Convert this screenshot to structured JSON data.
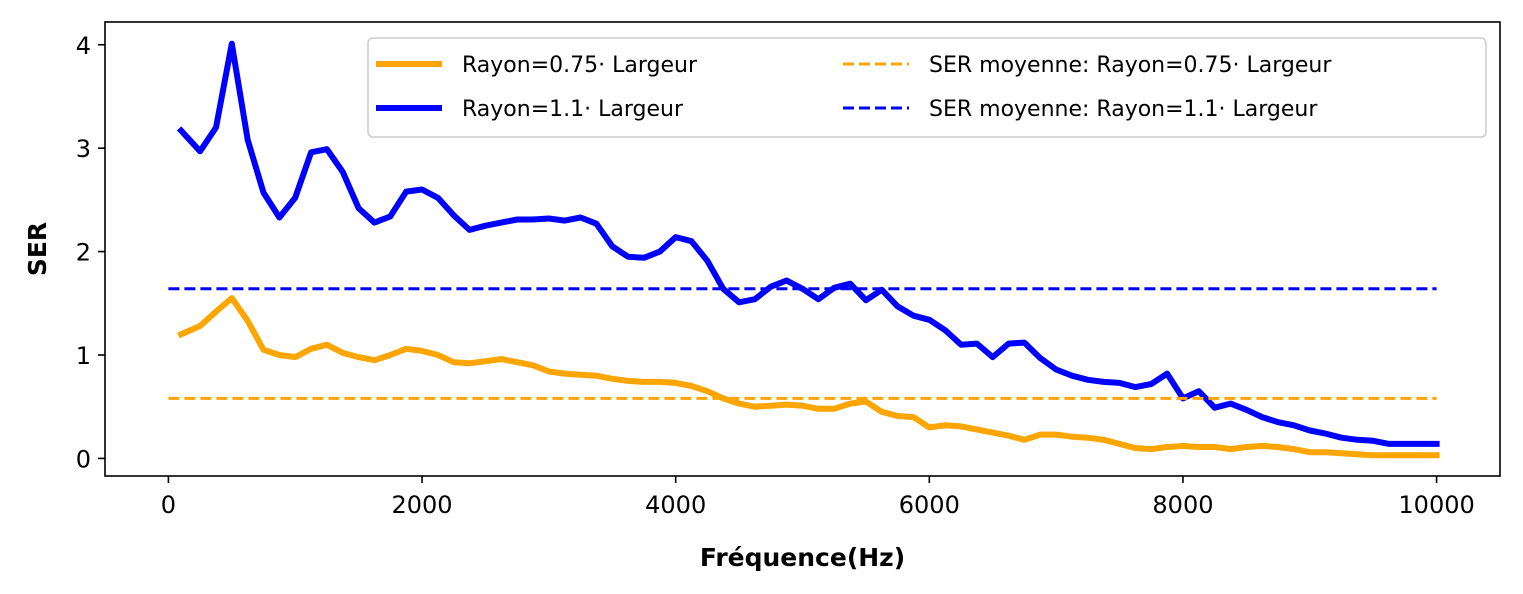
{
  "chart_data": {
    "type": "line",
    "xlabel": "Fréquence(Hz)",
    "ylabel": "SER",
    "xlim": [
      -500,
      10500
    ],
    "ylim": [
      -0.17,
      4.22
    ],
    "xticks": [
      0,
      2000,
      4000,
      6000,
      8000,
      10000
    ],
    "yticks": [
      0,
      1,
      2,
      3,
      4
    ],
    "grid": false,
    "legend_position": "top-right",
    "series": [
      {
        "name": "Rayon=0.75· Largeur",
        "color": "#FFA500",
        "style": "solid",
        "x": [
          100,
          250,
          375,
          500,
          625,
          750,
          875,
          1000,
          1125,
          1250,
          1375,
          1500,
          1625,
          1750,
          1875,
          2000,
          2125,
          2250,
          2375,
          2500,
          2625,
          2750,
          2875,
          3000,
          3125,
          3250,
          3375,
          3500,
          3625,
          3750,
          3875,
          4000,
          4125,
          4250,
          4375,
          4500,
          4625,
          4750,
          4875,
          5000,
          5125,
          5250,
          5375,
          5500,
          5625,
          5750,
          5875,
          6000,
          6125,
          6250,
          6375,
          6500,
          6625,
          6750,
          6875,
          7000,
          7125,
          7250,
          7375,
          7500,
          7625,
          7750,
          7875,
          8000,
          8125,
          8250,
          8375,
          8500,
          8625,
          8750,
          8875,
          9000,
          9125,
          9250,
          9375,
          9500,
          9625,
          9750,
          9875,
          10000
        ],
        "y": [
          1.2,
          1.28,
          1.42,
          1.55,
          1.33,
          1.05,
          1.0,
          0.98,
          1.06,
          1.1,
          1.02,
          0.98,
          0.95,
          1.0,
          1.06,
          1.04,
          1.0,
          0.93,
          0.92,
          0.94,
          0.96,
          0.93,
          0.9,
          0.84,
          0.82,
          0.81,
          0.8,
          0.77,
          0.75,
          0.74,
          0.74,
          0.73,
          0.7,
          0.65,
          0.58,
          0.53,
          0.5,
          0.51,
          0.52,
          0.51,
          0.48,
          0.48,
          0.53,
          0.55,
          0.45,
          0.41,
          0.4,
          0.3,
          0.32,
          0.31,
          0.28,
          0.25,
          0.22,
          0.18,
          0.23,
          0.23,
          0.21,
          0.2,
          0.18,
          0.14,
          0.1,
          0.09,
          0.11,
          0.12,
          0.11,
          0.11,
          0.09,
          0.11,
          0.12,
          0.11,
          0.09,
          0.06,
          0.06,
          0.05,
          0.04,
          0.03,
          0.03,
          0.03,
          0.03,
          0.03
        ]
      },
      {
        "name": "Rayon=1.1· Largeur",
        "color": "#0000FF",
        "style": "solid",
        "x": [
          100,
          250,
          375,
          500,
          625,
          750,
          875,
          1000,
          1125,
          1250,
          1375,
          1500,
          1625,
          1750,
          1875,
          2000,
          2125,
          2250,
          2375,
          2500,
          2625,
          2750,
          2875,
          3000,
          3125,
          3250,
          3375,
          3500,
          3625,
          3750,
          3875,
          4000,
          4125,
          4250,
          4375,
          4500,
          4625,
          4750,
          4875,
          5000,
          5125,
          5250,
          5375,
          5500,
          5625,
          5750,
          5875,
          6000,
          6125,
          6250,
          6375,
          6500,
          6625,
          6750,
          6875,
          7000,
          7125,
          7250,
          7375,
          7500,
          7625,
          7750,
          7875,
          8000,
          8125,
          8250,
          8375,
          8500,
          8625,
          8750,
          8875,
          9000,
          9125,
          9250,
          9375,
          9500,
          9625,
          9750,
          9875,
          10000
        ],
        "y": [
          3.17,
          2.97,
          3.2,
          4.01,
          3.08,
          2.57,
          2.33,
          2.52,
          2.96,
          2.99,
          2.77,
          2.42,
          2.28,
          2.34,
          2.58,
          2.6,
          2.52,
          2.35,
          2.21,
          2.25,
          2.28,
          2.31,
          2.31,
          2.32,
          2.3,
          2.33,
          2.27,
          2.05,
          1.95,
          1.94,
          2.0,
          2.14,
          2.1,
          1.91,
          1.64,
          1.51,
          1.54,
          1.66,
          1.72,
          1.64,
          1.54,
          1.65,
          1.69,
          1.53,
          1.63,
          1.47,
          1.38,
          1.34,
          1.24,
          1.1,
          1.11,
          0.98,
          1.11,
          1.12,
          0.97,
          0.86,
          0.8,
          0.76,
          0.74,
          0.73,
          0.69,
          0.72,
          0.82,
          0.58,
          0.65,
          0.49,
          0.53,
          0.47,
          0.4,
          0.35,
          0.32,
          0.27,
          0.24,
          0.2,
          0.18,
          0.17,
          0.14,
          0.14,
          0.14,
          0.14
        ]
      },
      {
        "name": "SER moyenne: Rayon=0.75· Largeur",
        "color": "#FFA500",
        "style": "dashed",
        "x": [
          0,
          10000
        ],
        "y": [
          0.58,
          0.58
        ]
      },
      {
        "name": "SER moyenne: Rayon=1.1· Largeur",
        "color": "#0000FF",
        "style": "dashed",
        "x": [
          0,
          10000
        ],
        "y": [
          1.64,
          1.64
        ]
      }
    ]
  }
}
